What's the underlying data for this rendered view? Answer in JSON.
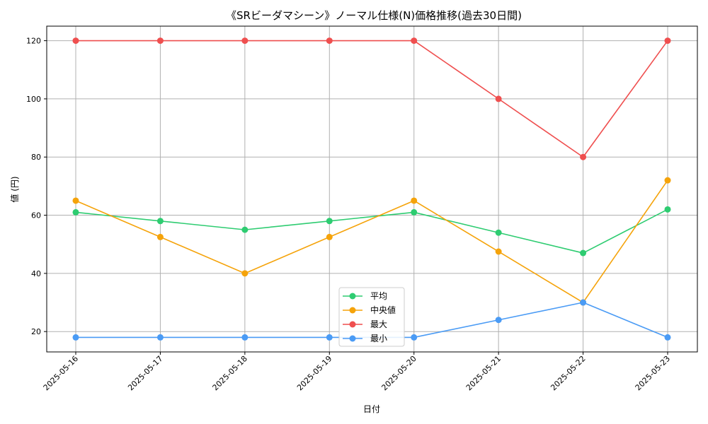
{
  "chart_data": {
    "type": "line",
    "title": "《SRビーダマシーン》ノーマル仕様(N)価格推移(過去30日間)",
    "xlabel": "日付",
    "ylabel": "値 (円)",
    "categories": [
      "2025-05-16",
      "2025-05-17",
      "2025-05-18",
      "2025-05-19",
      "2025-05-20",
      "2025-05-21",
      "2025-05-22",
      "2025-05-23"
    ],
    "ylim": [
      13,
      125
    ],
    "yticks": [
      20,
      40,
      60,
      80,
      100,
      120
    ],
    "grid": true,
    "legend_position": "lower-center",
    "series": [
      {
        "name": "平均",
        "color": "#2ecc71",
        "values": [
          61,
          58,
          55,
          58,
          61,
          54,
          47,
          62
        ]
      },
      {
        "name": "中央値",
        "color": "#f5a30a",
        "values": [
          65,
          52.5,
          40,
          52.5,
          65,
          47.5,
          30,
          72
        ]
      },
      {
        "name": "最大",
        "color": "#ef4f4f",
        "values": [
          120,
          120,
          120,
          120,
          120,
          100,
          80,
          120
        ]
      },
      {
        "name": "最小",
        "color": "#4a9bf5",
        "values": [
          18,
          18,
          18,
          18,
          18,
          24,
          30,
          18
        ]
      }
    ]
  }
}
